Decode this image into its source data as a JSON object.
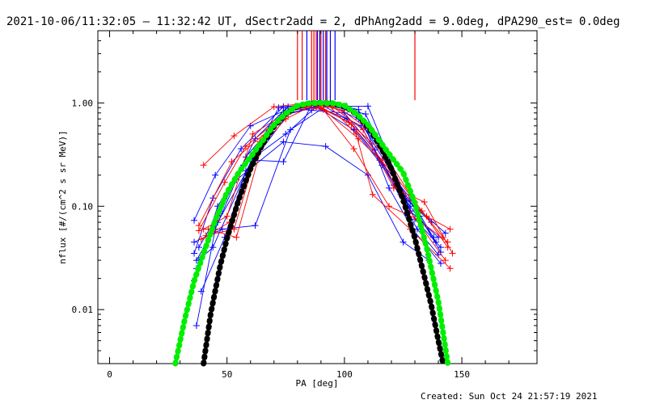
{
  "chart_data": {
    "type": "line",
    "title": "2021-10-06/11:32:05 – 11:32:42 UT, dSectr2add = 2, dPhAng2add = 9.0deg, dPA290_est=  0.0deg",
    "xlabel": "PA [deg]",
    "ylabel": "nflux [#/(cm^2 s sr MeV)]",
    "xlim": [
      -5,
      182
    ],
    "ylim": [
      0.003,
      5
    ],
    "yscale": "log",
    "x_ticks": [
      0,
      50,
      100,
      150
    ],
    "y_ticks": [
      {
        "value": 0.01,
        "label": "0.01"
      },
      {
        "value": 0.1,
        "label": "0.10"
      },
      {
        "value": 1,
        "label": "1.00"
      }
    ],
    "grid": false,
    "footer": "Created: Sun Oct 24 21:57:19 2021",
    "series": [
      {
        "color": "#0000ff",
        "marker": "plus",
        "lines": [
          [
            [
              36,
              0.073
            ],
            [
              45,
              0.2
            ],
            [
              60,
              0.6
            ],
            [
              75,
              0.85
            ],
            [
              90,
              1.0
            ],
            [
              104,
              0.82
            ],
            [
              118,
              0.28
            ],
            [
              128,
              0.09
            ],
            [
              140,
              0.05
            ]
          ],
          [
            [
              36,
              0.035
            ],
            [
              44,
              0.12
            ],
            [
              56,
              0.36
            ],
            [
              74,
              0.92
            ],
            [
              91,
              0.97
            ],
            [
              109,
              0.78
            ],
            [
              120,
              0.23
            ],
            [
              130,
              0.075
            ],
            [
              141,
              0.04
            ]
          ],
          [
            [
              37,
              0.025
            ],
            [
              47,
              0.085
            ],
            [
              58,
              0.3
            ],
            [
              73,
              0.75
            ],
            [
              90,
              0.96
            ],
            [
              107,
              0.6
            ],
            [
              121,
              0.16
            ],
            [
              131,
              0.06
            ],
            [
              140,
              0.034
            ]
          ],
          [
            [
              36,
              0.019
            ],
            [
              46,
              0.1
            ],
            [
              57,
              0.25
            ],
            [
              75,
              0.5
            ],
            [
              88,
              0.92
            ],
            [
              104,
              0.55
            ],
            [
              116,
              0.25
            ],
            [
              128,
              0.1
            ],
            [
              138,
              0.05
            ]
          ],
          [
            [
              37,
              0.007
            ],
            [
              45,
              0.06
            ],
            [
              54,
              0.18
            ],
            [
              74,
              0.42
            ],
            [
              92,
              0.38
            ],
            [
              110,
              0.2
            ],
            [
              125,
              0.045
            ],
            [
              136,
              0.03
            ]
          ],
          [
            [
              38,
              0.04
            ],
            [
              47,
              0.09
            ],
            [
              62,
              0.45
            ],
            [
              76,
              0.92
            ],
            [
              89,
              0.95
            ],
            [
              101,
              0.93
            ],
            [
              110,
              0.93
            ],
            [
              126,
              0.12
            ],
            [
              143,
              0.055
            ]
          ],
          [
            [
              37,
              0.03
            ],
            [
              46,
              0.07
            ],
            [
              61,
              0.28
            ],
            [
              74,
              0.27
            ],
            [
              86,
              0.96
            ],
            [
              101,
              0.7
            ],
            [
              115,
              0.28
            ],
            [
              128,
              0.12
            ],
            [
              139,
              0.045
            ]
          ],
          [
            [
              36,
              0.045
            ],
            [
              48,
              0.06
            ],
            [
              62,
              0.065
            ],
            [
              77,
              0.55
            ],
            [
              93,
              0.96
            ],
            [
              106,
              0.7
            ],
            [
              122,
              0.18
            ],
            [
              132,
              0.08
            ],
            [
              141,
              0.036
            ]
          ],
          [
            [
              38,
              0.03
            ],
            [
              44,
              0.04
            ],
            [
              61,
              0.3
            ],
            [
              72,
              0.9
            ],
            [
              86,
              0.85
            ],
            [
              100,
              0.8
            ],
            [
              113,
              0.35
            ],
            [
              124,
              0.13
            ],
            [
              137,
              0.07
            ]
          ],
          [
            [
              39,
              0.015
            ],
            [
              49,
              0.05
            ],
            [
              58,
              0.22
            ],
            [
              76,
              0.78
            ],
            [
              94,
              0.99
            ],
            [
              106,
              0.86
            ],
            [
              119,
              0.15
            ],
            [
              129,
              0.06
            ],
            [
              141,
              0.028
            ]
          ]
        ]
      },
      {
        "color": "#ff0000",
        "marker": "plus",
        "lines": [
          [
            [
              40,
              0.25
            ],
            [
              53,
              0.48
            ],
            [
              70,
              0.92
            ],
            [
              86,
              1.0
            ],
            [
              99,
              0.85
            ],
            [
              113,
              0.5
            ],
            [
              124,
              0.14
            ],
            [
              135,
              0.08
            ],
            [
              145,
              0.06
            ]
          ],
          [
            [
              38,
              0.058
            ],
            [
              49,
              0.17
            ],
            [
              58,
              0.38
            ],
            [
              76,
              0.82
            ],
            [
              88,
              0.97
            ],
            [
              103,
              0.62
            ],
            [
              117,
              0.32
            ],
            [
              130,
              0.11
            ],
            [
              142,
              0.05
            ]
          ],
          [
            [
              40,
              0.06
            ],
            [
              50,
              0.08
            ],
            [
              61,
              0.5
            ],
            [
              78,
              0.88
            ],
            [
              90,
              0.9
            ],
            [
              106,
              0.45
            ],
            [
              120,
              0.22
            ],
            [
              133,
              0.09
            ],
            [
              144,
              0.04
            ]
          ],
          [
            [
              39,
              0.048
            ],
            [
              51,
              0.07
            ],
            [
              63,
              0.35
            ],
            [
              75,
              0.7
            ],
            [
              87,
              0.96
            ],
            [
              102,
              0.65
            ],
            [
              116,
              0.28
            ],
            [
              125,
              0.11
            ],
            [
              143,
              0.03
            ]
          ],
          [
            [
              41,
              0.052
            ],
            [
              53,
              0.06
            ],
            [
              64,
              0.42
            ],
            [
              79,
              0.93
            ],
            [
              93,
              0.96
            ],
            [
              105,
              0.5
            ],
            [
              112,
              0.13
            ],
            [
              128,
              0.06
            ],
            [
              145,
              0.025
            ]
          ],
          [
            [
              38,
              0.065
            ],
            [
              52,
              0.27
            ],
            [
              68,
              0.55
            ],
            [
              82,
              0.96
            ],
            [
              95,
              0.92
            ],
            [
              108,
              0.55
            ],
            [
              121,
              0.15
            ],
            [
              134,
              0.11
            ],
            [
              146,
              0.035
            ]
          ],
          [
            [
              42,
              0.06
            ],
            [
              54,
              0.05
            ],
            [
              66,
              0.48
            ],
            [
              80,
              0.92
            ],
            [
              91,
              0.86
            ],
            [
              104,
              0.36
            ],
            [
              119,
              0.1
            ],
            [
              131,
              0.075
            ],
            [
              144,
              0.045
            ]
          ]
        ]
      },
      {
        "color": "#000000",
        "marker": "dot",
        "curve": "sin^8",
        "points": [
          [
            40,
            0.003
          ],
          [
            43,
            0.009
          ],
          [
            47,
            0.026
          ],
          [
            50,
            0.049
          ],
          [
            55,
            0.116
          ],
          [
            60,
            0.23
          ],
          [
            65,
            0.395
          ],
          [
            70,
            0.593
          ],
          [
            75,
            0.785
          ],
          [
            80,
            0.926
          ],
          [
            85,
            0.991
          ],
          [
            90,
            1.0
          ],
          [
            95,
            0.991
          ],
          [
            100,
            0.926
          ],
          [
            105,
            0.785
          ],
          [
            110,
            0.593
          ],
          [
            115,
            0.395
          ],
          [
            120,
            0.23
          ],
          [
            125,
            0.116
          ],
          [
            130,
            0.049
          ],
          [
            134,
            0.021
          ],
          [
            137,
            0.011
          ],
          [
            140,
            0.005
          ],
          [
            142,
            0.003
          ]
        ]
      },
      {
        "color": "#00ee00",
        "marker": "dot",
        "curve": "sin^6",
        "points": [
          [
            28,
            0.003
          ],
          [
            32,
            0.008
          ],
          [
            36,
            0.019
          ],
          [
            40,
            0.035
          ],
          [
            45,
            0.073
          ],
          [
            50,
            0.136
          ],
          [
            55,
            0.212
          ],
          [
            60,
            0.299
          ],
          [
            65,
            0.428
          ],
          [
            70,
            0.616
          ],
          [
            75,
            0.791
          ],
          [
            80,
            0.942
          ],
          [
            85,
            0.993
          ],
          [
            90,
            1.0
          ],
          [
            95,
            0.993
          ],
          [
            100,
            0.942
          ],
          [
            105,
            0.791
          ],
          [
            110,
            0.616
          ],
          [
            115,
            0.428
          ],
          [
            120,
            0.299
          ],
          [
            125,
            0.212
          ],
          [
            130,
            0.107
          ],
          [
            135,
            0.04
          ],
          [
            140,
            0.012
          ],
          [
            144,
            0.003
          ]
        ]
      }
    ],
    "vertical_lines": [
      {
        "color": "#ff0000",
        "x": [
          80,
          82,
          86,
          87,
          88,
          90,
          92,
          130
        ]
      },
      {
        "color": "#0000ff",
        "x": [
          84,
          88.5,
          89.5,
          91,
          92.5,
          94,
          96
        ]
      }
    ]
  }
}
